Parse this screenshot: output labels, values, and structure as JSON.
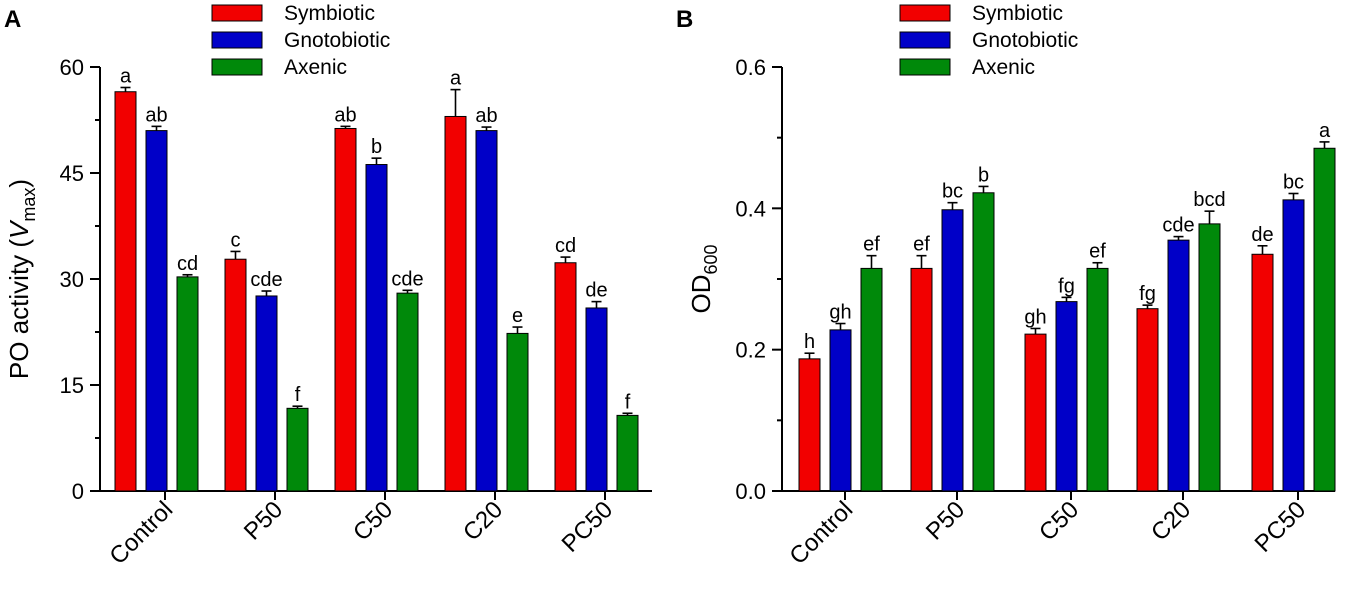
{
  "colors": {
    "Symbiotic": "#f20000",
    "Gnotobiotic": "#0000c8",
    "Axenic": "#00890a"
  },
  "chart_data": [
    {
      "panel": "A",
      "type": "bar",
      "title": "",
      "ylabel_main": "PO activity (",
      "ylabel_var": "V",
      "ylabel_sub": "max",
      "ylabel_close": ")",
      "xlabel": "",
      "ylim": [
        0,
        60
      ],
      "yticks": [
        "0",
        "15",
        "30",
        "45",
        "60"
      ],
      "ytick_values": [
        0,
        15,
        30,
        45,
        60
      ],
      "categories": [
        "Control",
        "P50",
        "C50",
        "C20",
        "PC50"
      ],
      "legend": [
        "Symbiotic",
        "Gnotobiotic",
        "Axenic"
      ],
      "legend_position": "top",
      "series": [
        {
          "name": "Symbiotic",
          "values": [
            56.5,
            32.8,
            51.3,
            53.0,
            32.3
          ],
          "errors": [
            0.6,
            1.1,
            0.3,
            3.8,
            0.8
          ],
          "letters": [
            "a",
            "c",
            "ab",
            "a",
            "cd"
          ]
        },
        {
          "name": "Gnotobiotic",
          "values": [
            51.0,
            27.6,
            46.2,
            51.0,
            25.9
          ],
          "errors": [
            0.6,
            0.7,
            0.9,
            0.5,
            0.9
          ],
          "letters": [
            "ab",
            "cde",
            "b",
            "ab",
            "de"
          ]
        },
        {
          "name": "Axenic",
          "values": [
            30.3,
            11.7,
            28.0,
            22.3,
            10.7
          ],
          "errors": [
            0.3,
            0.3,
            0.4,
            0.9,
            0.3
          ],
          "letters": [
            "cd",
            "f",
            "cde",
            "e",
            "f"
          ]
        }
      ]
    },
    {
      "panel": "B",
      "type": "bar",
      "title": "",
      "ylabel_main": "OD",
      "ylabel_sub": "600",
      "xlabel": "",
      "ylim": [
        0,
        0.6
      ],
      "yticks": [
        "0.0",
        "0.2",
        "0.4",
        "0.6"
      ],
      "ytick_values": [
        0,
        0.2,
        0.4,
        0.6
      ],
      "categories": [
        "Control",
        "P50",
        "C50",
        "C20",
        "PC50"
      ],
      "legend": [
        "Symbiotic",
        "Gnotobiotic",
        "Axenic"
      ],
      "legend_position": "top",
      "series": [
        {
          "name": "Symbiotic",
          "values": [
            0.187,
            0.315,
            0.222,
            0.258,
            0.335
          ],
          "errors": [
            0.008,
            0.018,
            0.008,
            0.005,
            0.012
          ],
          "letters": [
            "h",
            "ef",
            "gh",
            "fg",
            "de"
          ]
        },
        {
          "name": "Gnotobiotic",
          "values": [
            0.228,
            0.398,
            0.268,
            0.355,
            0.412
          ],
          "errors": [
            0.009,
            0.01,
            0.006,
            0.005,
            0.009
          ],
          "letters": [
            "gh",
            "bc",
            "fg",
            "cde",
            "bc"
          ]
        },
        {
          "name": "Axenic",
          "values": [
            0.315,
            0.422,
            0.315,
            0.378,
            0.485
          ],
          "errors": [
            0.018,
            0.009,
            0.008,
            0.018,
            0.009
          ],
          "letters": [
            "ef",
            "b",
            "ef",
            "bcd",
            "a"
          ]
        }
      ]
    }
  ]
}
